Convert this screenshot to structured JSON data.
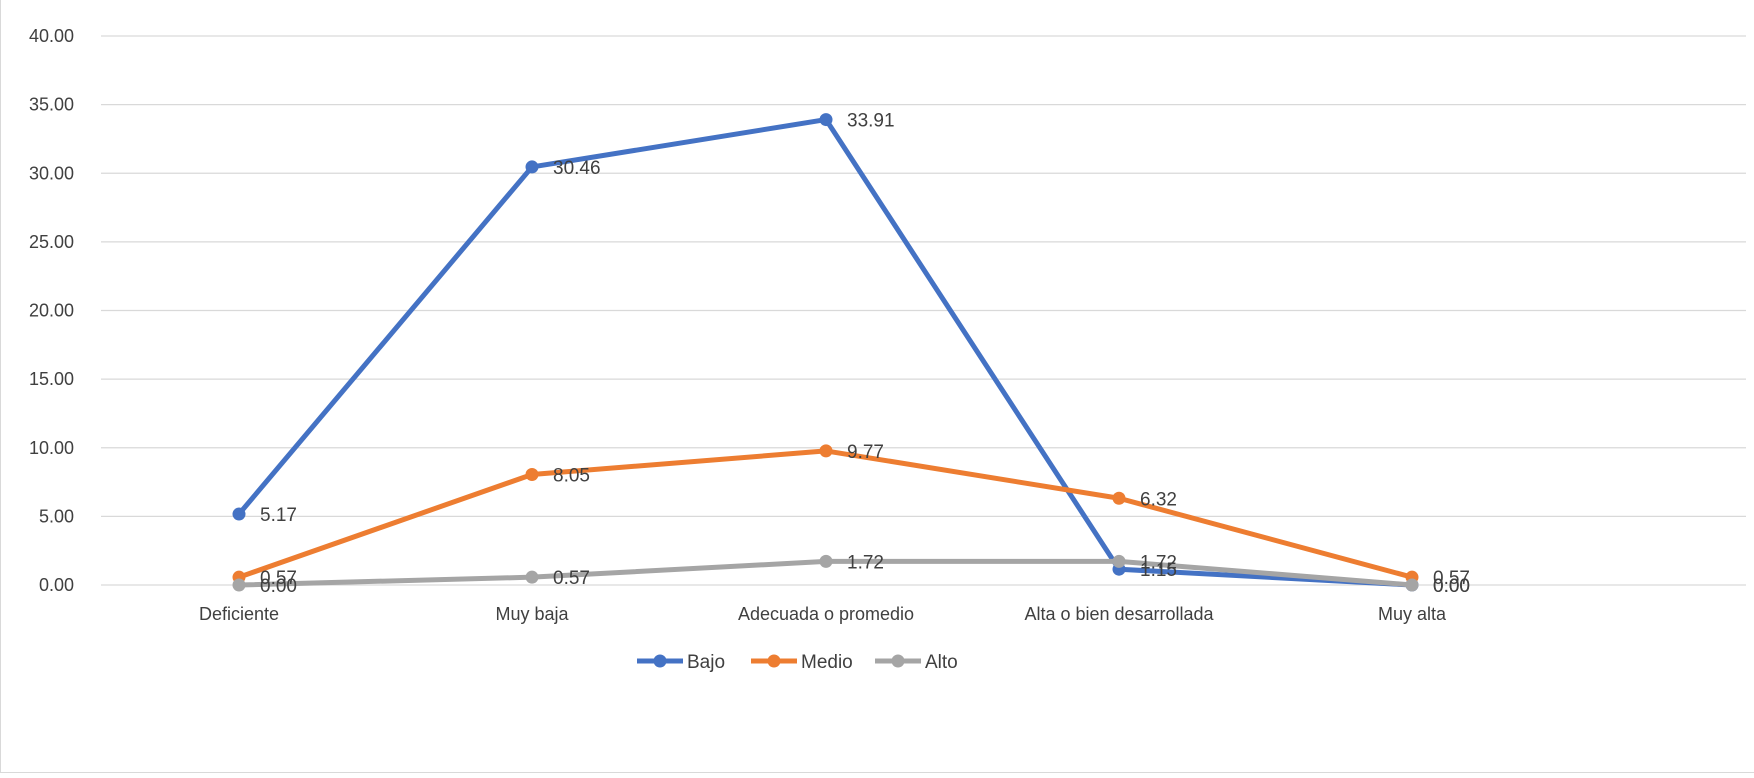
{
  "chart_data": {
    "type": "line",
    "title": "",
    "xlabel": "",
    "ylabel": "",
    "categories": [
      "Deficiente",
      "Muy baja",
      "Adecuada o promedio",
      "Alta o bien desarrollada",
      "Muy alta"
    ],
    "ylim": [
      0,
      40
    ],
    "yticks": [
      "0.00",
      "5.00",
      "10.00",
      "15.00",
      "20.00",
      "25.00",
      "30.00",
      "35.00",
      "40.00"
    ],
    "grid": true,
    "legend_position": "bottom",
    "series": [
      {
        "name": "Bajo",
        "color": "#4472c4",
        "values": [
          5.17,
          30.46,
          33.91,
          1.15,
          0.0
        ],
        "labels": [
          "5.17",
          "30.46",
          "33.91",
          "1.15",
          "0.00"
        ]
      },
      {
        "name": "Medio",
        "color": "#ed7d31",
        "values": [
          0.57,
          8.05,
          9.77,
          6.32,
          0.57
        ],
        "labels": [
          "0.57",
          "8.05",
          "9.77",
          "6.32",
          "0.57"
        ]
      },
      {
        "name": "Alto",
        "color": "#a5a5a5",
        "values": [
          0.0,
          0.57,
          1.72,
          1.72,
          0.0
        ],
        "labels": [
          "0.00",
          "0.57",
          "1.72",
          "1.72",
          "0.00"
        ]
      }
    ]
  }
}
